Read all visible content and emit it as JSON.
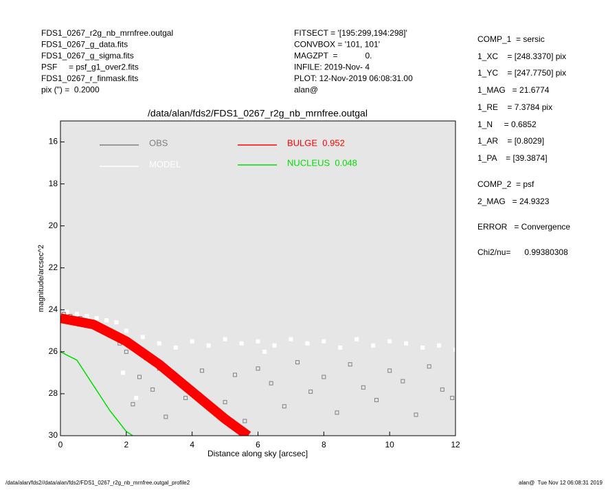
{
  "header_left": [
    "FDS1_0267_r2g_nb_mrnfree.outgal",
    "FDS1_0267_g_data.fits",
    "FDS1_0267_g_sigma.fits",
    "PSF     = psf_g1_over2.fits",
    "FDS1_0267_r_finmask.fits",
    "pix (\") =  0.2000"
  ],
  "header_middle": [
    "FITSECT = '[195:299,194:298]'",
    "CONVBOX = '101, 101'",
    "MAGZPT  =            0.",
    "INFILE: 2019-Nov- 4",
    "PLOT: 12-Nov-2019 06:08:31.00",
    "alan@"
  ],
  "components": [
    "COMP_1  = sersic",
    "1_XC    = [248.3370] pix",
    "1_YC    = [247.7750] pix",
    "1_MAG   = 21.6774",
    "1_RE    = 7.3784 pix",
    "1_N     = 0.6852",
    "1_AR    = [0.8029]",
    "1_PA    = [39.3874]",
    "COMP_2  = psf",
    "2_MAG   = 24.9323",
    "ERROR   = Convergence",
    "Chi2/nu=      0.99380308"
  ],
  "footer_left": "/data/alan/fds2//data/alan/fds2/FDS1_0267_r2g_nb_mrnfree.outgal_profile2",
  "footer_right": "alan@  Tue Nov 12 06:08:31 2019",
  "chart_data": {
    "type": "scatter",
    "title": "/data/alan/fds2/FDS1_0267_r2g_nb_mrnfree.outgal",
    "x_label": "Distance along sky [arcsec]",
    "y_label": "magnitude/arcsec^2",
    "xlim": [
      0,
      12
    ],
    "ylim": [
      30,
      15
    ],
    "xticks": [
      0,
      2,
      4,
      6,
      8,
      10,
      12
    ],
    "yticks": [
      16,
      18,
      20,
      22,
      24,
      26,
      28,
      30
    ],
    "series": [
      {
        "name": "MODEL",
        "color": "#ffffff",
        "style": "filled-points",
        "x": [
          0.2,
          0.5,
          0.8,
          1.1,
          1.4,
          1.7,
          2.0,
          2.5,
          3.0,
          3.5,
          4.0,
          4.5,
          5.0,
          5.5,
          6.0,
          6.5,
          7.0,
          7.5,
          8.0,
          8.5,
          9.0,
          9.5,
          10.0,
          10.5,
          11.0,
          11.5,
          12.0,
          1.9,
          2.3,
          6.2
        ],
        "values": [
          24.1,
          24.2,
          24.3,
          24.4,
          24.5,
          24.6,
          25.0,
          25.3,
          25.6,
          25.8,
          25.5,
          25.7,
          25.4,
          25.6,
          25.5,
          25.7,
          25.4,
          25.6,
          25.5,
          25.8,
          25.4,
          25.7,
          25.5,
          25.6,
          25.8,
          25.7,
          25.9,
          27.0,
          28.2,
          26.0
        ]
      },
      {
        "name": "OBS",
        "color": "#808080",
        "style": "hollow-points",
        "x": [
          0.1,
          0.3,
          0.6,
          0.9,
          1.2,
          1.5,
          1.8,
          2.0,
          2.2,
          2.4,
          2.6,
          2.8,
          3.0,
          3.2,
          3.5,
          3.8,
          4.0,
          4.3,
          4.6,
          5.0,
          5.3,
          5.6,
          6.0,
          6.4,
          6.8,
          7.2,
          7.6,
          8.0,
          8.4,
          8.8,
          9.2,
          9.6,
          10.0,
          10.4,
          10.8,
          11.2,
          11.6,
          11.9
        ],
        "values": [
          24.2,
          24.3,
          24.4,
          24.6,
          24.8,
          25.2,
          25.6,
          26.0,
          28.5,
          27.2,
          26.3,
          27.8,
          26.8,
          29.1,
          27.4,
          28.2,
          27.9,
          26.9,
          28.8,
          28.4,
          27.1,
          29.3,
          26.8,
          27.5,
          28.6,
          26.5,
          27.9,
          27.2,
          28.9,
          26.6,
          27.7,
          28.3,
          26.9,
          27.4,
          29.0,
          26.7,
          27.8,
          28.2
        ]
      },
      {
        "name": "BULGE  0.952",
        "color": "#ff0000",
        "style": "band",
        "x": [
          0,
          1,
          2,
          3,
          4,
          5,
          5.7
        ],
        "values": [
          24.4,
          24.7,
          25.5,
          26.6,
          27.9,
          29.2,
          30
        ]
      },
      {
        "name": "NUCLEUS  0.048",
        "color": "#00dd00",
        "style": "line",
        "x": [
          0,
          0.5,
          1,
          1.5,
          2,
          2.2
        ],
        "values": [
          26.0,
          26.4,
          27.6,
          28.8,
          29.8,
          30
        ]
      }
    ]
  }
}
